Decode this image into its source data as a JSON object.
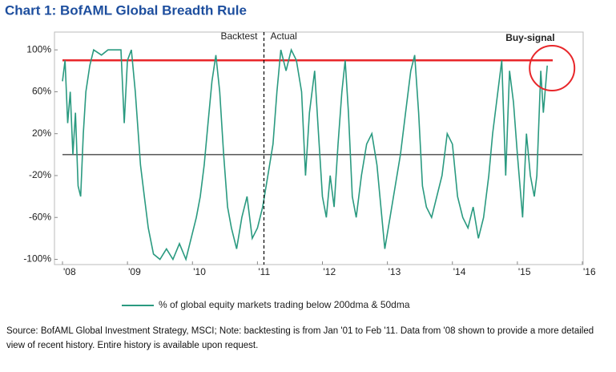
{
  "chart_data": {
    "type": "line",
    "title": "Chart 1: BofAML Global Breadth Rule",
    "source": "Source: BofAML Global Investment Strategy, MSCI; Note: backtesting is from Jan '01 to Feb '11. Data from '08 shown to provide a more detailed view of recent history. Entire history is available upon request.",
    "annotations": [
      {
        "text": "Backtest",
        "x": 2011.1
      },
      {
        "text": "Actual",
        "x": 2011.1
      },
      {
        "text": "Buy-signal",
        "x": 2015.46
      }
    ],
    "vertical_line": {
      "x": 2011.1,
      "style": "dashed"
    },
    "reference_lines": [
      {
        "value": 90,
        "color": "#e8262a"
      },
      {
        "value": 0,
        "color": "#000000"
      }
    ],
    "x": [
      2008.0,
      2008.04,
      2008.08,
      2008.12,
      2008.16,
      2008.2,
      2008.24,
      2008.28,
      2008.32,
      2008.36,
      2008.42,
      2008.48,
      2008.6,
      2008.7,
      2008.8,
      2008.9,
      2008.95,
      2009.0,
      2009.06,
      2009.12,
      2009.2,
      2009.26,
      2009.32,
      2009.4,
      2009.5,
      2009.6,
      2009.7,
      2009.8,
      2009.9,
      2009.98,
      2010.06,
      2010.12,
      2010.18,
      2010.24,
      2010.3,
      2010.36,
      2010.42,
      2010.48,
      2010.54,
      2010.6,
      2010.68,
      2010.76,
      2010.84,
      2010.92,
      2011.0,
      2011.08,
      2011.16,
      2011.24,
      2011.3,
      2011.36,
      2011.44,
      2011.52,
      2011.6,
      2011.68,
      2011.74,
      2011.8,
      2011.88,
      2011.94,
      2012.0,
      2012.06,
      2012.12,
      2012.18,
      2012.24,
      2012.3,
      2012.35,
      2012.4,
      2012.46,
      2012.52,
      2012.6,
      2012.68,
      2012.76,
      2012.84,
      2012.9,
      2012.96,
      2013.04,
      2013.12,
      2013.2,
      2013.28,
      2013.36,
      2013.42,
      2013.48,
      2013.54,
      2013.6,
      2013.68,
      2013.76,
      2013.84,
      2013.92,
      2014.0,
      2014.08,
      2014.16,
      2014.24,
      2014.32,
      2014.4,
      2014.48,
      2014.56,
      2014.62,
      2014.7,
      2014.76,
      2014.82,
      2014.88,
      2014.94,
      2015.0,
      2015.08,
      2015.14,
      2015.2,
      2015.26,
      2015.3,
      2015.36,
      2015.4,
      2015.46
    ],
    "series": [
      {
        "name": "% of global equity markets trading below 200dma & 50dma",
        "color": "#2a9a80",
        "values": [
          70,
          90,
          30,
          60,
          0,
          40,
          -30,
          -40,
          20,
          60,
          85,
          100,
          95,
          100,
          100,
          100,
          30,
          90,
          100,
          60,
          -10,
          -40,
          -70,
          -95,
          -100,
          -90,
          -100,
          -85,
          -100,
          -80,
          -60,
          -40,
          -10,
          30,
          70,
          95,
          60,
          0,
          -50,
          -70,
          -90,
          -60,
          -40,
          -80,
          -70,
          -50,
          -20,
          10,
          60,
          100,
          80,
          100,
          90,
          60,
          -20,
          40,
          80,
          20,
          -40,
          -60,
          -20,
          -50,
          10,
          60,
          90,
          40,
          -40,
          -60,
          -20,
          10,
          20,
          -10,
          -50,
          -90,
          -60,
          -30,
          0,
          40,
          80,
          95,
          40,
          -30,
          -50,
          -60,
          -40,
          -20,
          20,
          10,
          -40,
          -60,
          -70,
          -50,
          -80,
          -60,
          -20,
          20,
          60,
          90,
          -20,
          80,
          50,
          0,
          -60,
          20,
          -20,
          -40,
          -20,
          80,
          40,
          85
        ]
      }
    ],
    "xlim": [
      2008,
      2016
    ],
    "xticks": [
      {
        "value": 2008,
        "label": "'08"
      },
      {
        "value": 2009,
        "label": "'09"
      },
      {
        "value": 2010,
        "label": "'10"
      },
      {
        "value": 2011,
        "label": "'11"
      },
      {
        "value": 2012,
        "label": "'12"
      },
      {
        "value": 2013,
        "label": "'13"
      },
      {
        "value": 2014,
        "label": "'14"
      },
      {
        "value": 2015,
        "label": "'15"
      },
      {
        "value": 2016,
        "label": "'16"
      }
    ],
    "ylim": [
      -105,
      117
    ],
    "yticks": [
      {
        "value": -100,
        "label": "-100%"
      },
      {
        "value": -60,
        "label": "-60%"
      },
      {
        "value": -20,
        "label": "-20%"
      },
      {
        "value": 20,
        "label": "20%"
      },
      {
        "value": 60,
        "label": "60%"
      },
      {
        "value": 100,
        "label": "100%"
      }
    ]
  }
}
